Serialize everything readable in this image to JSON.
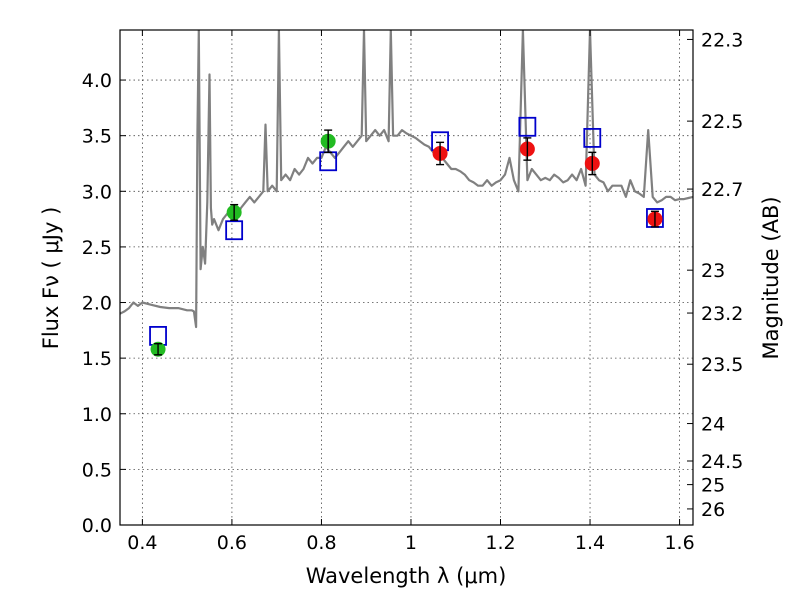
{
  "chart_data": {
    "type": "scatter",
    "xlabel": "Wavelength  λ (μm)",
    "ylabel": "Flux  Fν  ( μJy )",
    "y2label": "Magnitude (AB)",
    "xlim": [
      0.35,
      1.63
    ],
    "ylim": [
      0.0,
      4.45
    ],
    "grid": true,
    "x_ticks": [
      0.4,
      0.6,
      0.8,
      1.0,
      1.2,
      1.4,
      1.6
    ],
    "x_tick_labels": [
      "0.4",
      "0.6",
      "0.8",
      "1",
      "1.2",
      "1.4",
      "1.6"
    ],
    "y_ticks": [
      0.0,
      0.5,
      1.0,
      1.5,
      2.0,
      2.5,
      3.0,
      3.5,
      4.0
    ],
    "y_tick_labels": [
      "0.0",
      "0.5",
      "1.0",
      "1.5",
      "2.0",
      "2.5",
      "3.0",
      "3.5",
      "4.0"
    ],
    "y2_ticks": [
      22.3,
      22.5,
      22.7,
      23,
      23.2,
      23.5,
      24,
      24.5,
      25,
      26
    ],
    "y2_tick_labels": [
      "22.3",
      "22.5",
      "22.7",
      "23",
      "23.2",
      "23.5",
      "24",
      "24.5",
      "25",
      "26"
    ],
    "colors": {
      "spectrum": "#808080",
      "model_box": "#0000cc",
      "green_points": "#22bb22",
      "red_points": "#ee1111",
      "errorbar": "#000000"
    },
    "series": [
      {
        "kind": "line",
        "color": "#808080",
        "x": [
          0.35,
          0.36,
          0.37,
          0.38,
          0.39,
          0.4,
          0.42,
          0.44,
          0.46,
          0.48,
          0.5,
          0.51,
          0.515,
          0.52,
          0.523,
          0.526,
          0.53,
          0.535,
          0.54,
          0.545,
          0.55,
          0.553,
          0.556,
          0.56,
          0.57,
          0.58,
          0.59,
          0.6,
          0.61,
          0.62,
          0.63,
          0.64,
          0.65,
          0.66,
          0.67,
          0.675,
          0.68,
          0.69,
          0.7,
          0.705,
          0.71,
          0.72,
          0.73,
          0.74,
          0.75,
          0.76,
          0.77,
          0.78,
          0.79,
          0.8,
          0.81,
          0.82,
          0.83,
          0.84,
          0.85,
          0.86,
          0.87,
          0.88,
          0.89,
          0.895,
          0.9,
          0.91,
          0.92,
          0.93,
          0.94,
          0.95,
          0.955,
          0.96,
          0.97,
          0.98,
          0.99,
          1.0,
          1.01,
          1.02,
          1.03,
          1.04,
          1.05,
          1.06,
          1.07,
          1.08,
          1.09,
          1.1,
          1.11,
          1.12,
          1.13,
          1.14,
          1.15,
          1.16,
          1.17,
          1.18,
          1.19,
          1.2,
          1.21,
          1.22,
          1.23,
          1.24,
          1.25,
          1.26,
          1.27,
          1.28,
          1.29,
          1.3,
          1.31,
          1.32,
          1.33,
          1.34,
          1.35,
          1.36,
          1.37,
          1.38,
          1.39,
          1.4,
          1.41,
          1.42,
          1.43,
          1.44,
          1.45,
          1.46,
          1.47,
          1.48,
          1.49,
          1.5,
          1.51,
          1.52,
          1.53,
          1.54,
          1.55,
          1.56,
          1.57,
          1.58,
          1.59,
          1.6,
          1.61,
          1.62,
          1.63
        ],
        "values": [
          1.9,
          1.92,
          1.95,
          2.0,
          1.97,
          2.0,
          1.98,
          1.96,
          1.95,
          1.95,
          1.93,
          1.93,
          1.92,
          1.78,
          3.5,
          4.45,
          2.3,
          2.5,
          2.35,
          2.9,
          4.05,
          2.85,
          2.7,
          2.75,
          2.65,
          2.75,
          2.8,
          2.85,
          2.75,
          2.85,
          2.9,
          2.95,
          2.9,
          2.95,
          3.0,
          3.6,
          3.0,
          3.05,
          3.0,
          4.45,
          3.1,
          3.15,
          3.1,
          3.2,
          3.15,
          3.2,
          3.3,
          3.25,
          3.3,
          3.3,
          3.4,
          3.35,
          3.3,
          3.35,
          3.4,
          3.45,
          3.4,
          3.45,
          3.5,
          4.45,
          3.45,
          3.5,
          3.55,
          3.5,
          3.55,
          3.45,
          4.45,
          3.5,
          3.5,
          3.55,
          3.52,
          3.5,
          3.48,
          3.45,
          3.42,
          3.4,
          3.35,
          3.3,
          3.3,
          3.25,
          3.2,
          3.2,
          3.18,
          3.15,
          3.1,
          3.08,
          3.05,
          3.05,
          3.1,
          3.05,
          3.08,
          3.1,
          3.15,
          3.3,
          3.1,
          3.0,
          4.45,
          3.1,
          3.2,
          3.15,
          3.1,
          3.12,
          3.1,
          3.15,
          3.12,
          3.08,
          3.1,
          3.15,
          3.1,
          3.2,
          3.05,
          4.45,
          3.15,
          3.1,
          3.08,
          3.0,
          3.05,
          3.05,
          3.05,
          2.95,
          3.1,
          3.0,
          2.98,
          2.95,
          3.55,
          2.95,
          2.9,
          2.92,
          2.95,
          2.95,
          2.92,
          2.93,
          2.93,
          2.94,
          2.95
        ]
      },
      {
        "kind": "model_boxes",
        "color": "#0000cc",
        "x": [
          0.435,
          0.605,
          0.815,
          1.065,
          1.26,
          1.405,
          1.545
        ],
        "values": [
          1.7,
          2.65,
          3.27,
          3.45,
          3.58,
          3.48,
          2.76
        ]
      },
      {
        "kind": "points_with_errors",
        "color": "#22bb22",
        "x": [
          0.435,
          0.605,
          0.815
        ],
        "values": [
          1.58,
          2.81,
          3.45
        ],
        "errors": [
          0.05,
          0.07,
          0.1
        ]
      },
      {
        "kind": "points_with_errors",
        "color": "#ee1111",
        "x": [
          1.065,
          1.26,
          1.405,
          1.545
        ],
        "values": [
          3.34,
          3.38,
          3.25,
          2.75
        ],
        "errors": [
          0.1,
          0.1,
          0.1,
          0.07
        ]
      }
    ]
  }
}
